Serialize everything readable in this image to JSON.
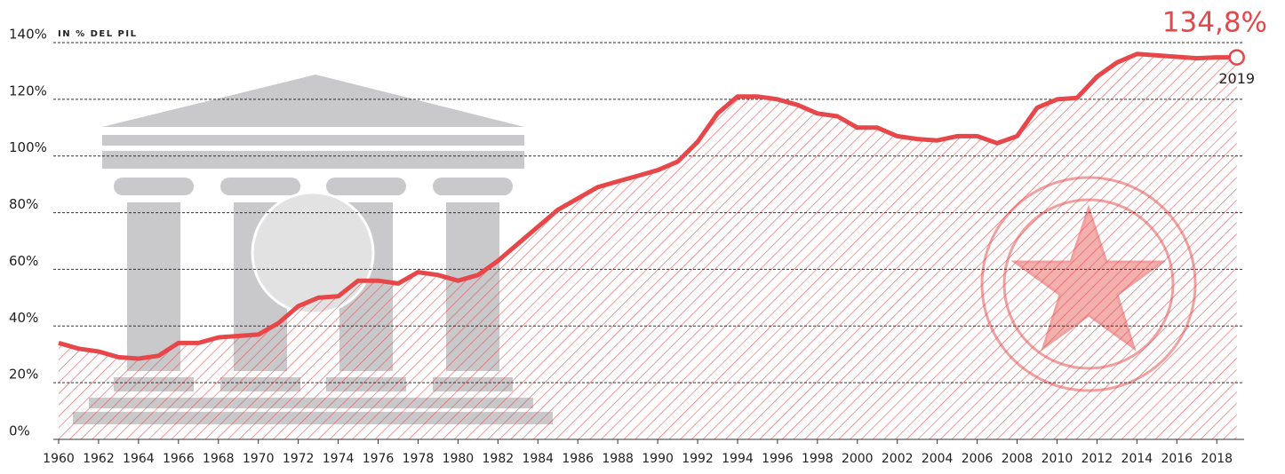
{
  "chart_data": {
    "type": "area-line",
    "subtitle": "IN % DEL PIL",
    "color": "#e8474a",
    "x": [
      1960,
      1961,
      1962,
      1963,
      1964,
      1965,
      1966,
      1967,
      1968,
      1969,
      1970,
      1971,
      1972,
      1973,
      1974,
      1975,
      1976,
      1977,
      1978,
      1979,
      1980,
      1981,
      1982,
      1983,
      1984,
      1985,
      1986,
      1987,
      1988,
      1989,
      1990,
      1991,
      1992,
      1993,
      1994,
      1995,
      1996,
      1997,
      1998,
      1999,
      2000,
      2001,
      2002,
      2003,
      2004,
      2005,
      2006,
      2007,
      2008,
      2009,
      2010,
      2011,
      2012,
      2013,
      2014,
      2015,
      2016,
      2017,
      2018,
      2019
    ],
    "values": [
      34,
      32,
      31,
      29,
      28.5,
      29.5,
      34,
      34,
      36,
      36.5,
      37,
      41,
      47,
      50,
      50.5,
      56,
      56,
      55,
      59,
      58,
      56,
      58,
      63,
      69,
      75,
      81,
      85,
      89,
      91,
      93,
      95,
      98,
      105,
      115,
      121,
      121,
      120,
      118,
      115,
      114,
      110,
      110,
      107,
      106,
      105.5,
      107,
      107,
      104.5,
      107,
      117,
      120,
      120.5,
      128,
      133,
      136,
      135.5,
      135,
      134.5,
      134.8,
      134.8
    ],
    "value_labels": [
      null,
      null,
      null,
      null,
      null,
      null,
      null,
      null,
      null,
      null,
      null,
      null,
      null,
      null,
      null,
      null,
      null,
      null,
      null,
      null,
      null,
      null,
      null,
      null,
      null,
      null,
      null,
      null,
      null,
      null,
      null,
      null,
      null,
      null,
      null,
      null,
      null,
      null,
      null,
      null,
      null,
      null,
      null,
      null,
      null,
      null,
      null,
      null,
      null,
      null,
      null,
      null,
      null,
      null,
      null,
      null,
      null,
      null,
      null,
      "134,8%"
    ],
    "xlim": [
      1960,
      2019
    ],
    "xticks": [
      1960,
      1962,
      1964,
      1966,
      1968,
      1970,
      1972,
      1974,
      1976,
      1978,
      1980,
      1982,
      1984,
      1986,
      1988,
      1990,
      1992,
      1994,
      1996,
      1998,
      2000,
      2002,
      2004,
      2006,
      2008,
      2010,
      2012,
      2014,
      2016,
      2018
    ],
    "ylim": [
      0,
      140
    ],
    "yticks": [
      {
        "value": 0,
        "label": "0%"
      },
      {
        "value": 20,
        "label": "20%"
      },
      {
        "value": 40,
        "label": "40%"
      },
      {
        "value": 60,
        "label": "60%"
      },
      {
        "value": 80,
        "label": "80%"
      },
      {
        "value": 100,
        "label": "100%"
      },
      {
        "value": 120,
        "label": "120%"
      },
      {
        "value": 140,
        "label": "140%"
      }
    ],
    "grid": true
  }
}
